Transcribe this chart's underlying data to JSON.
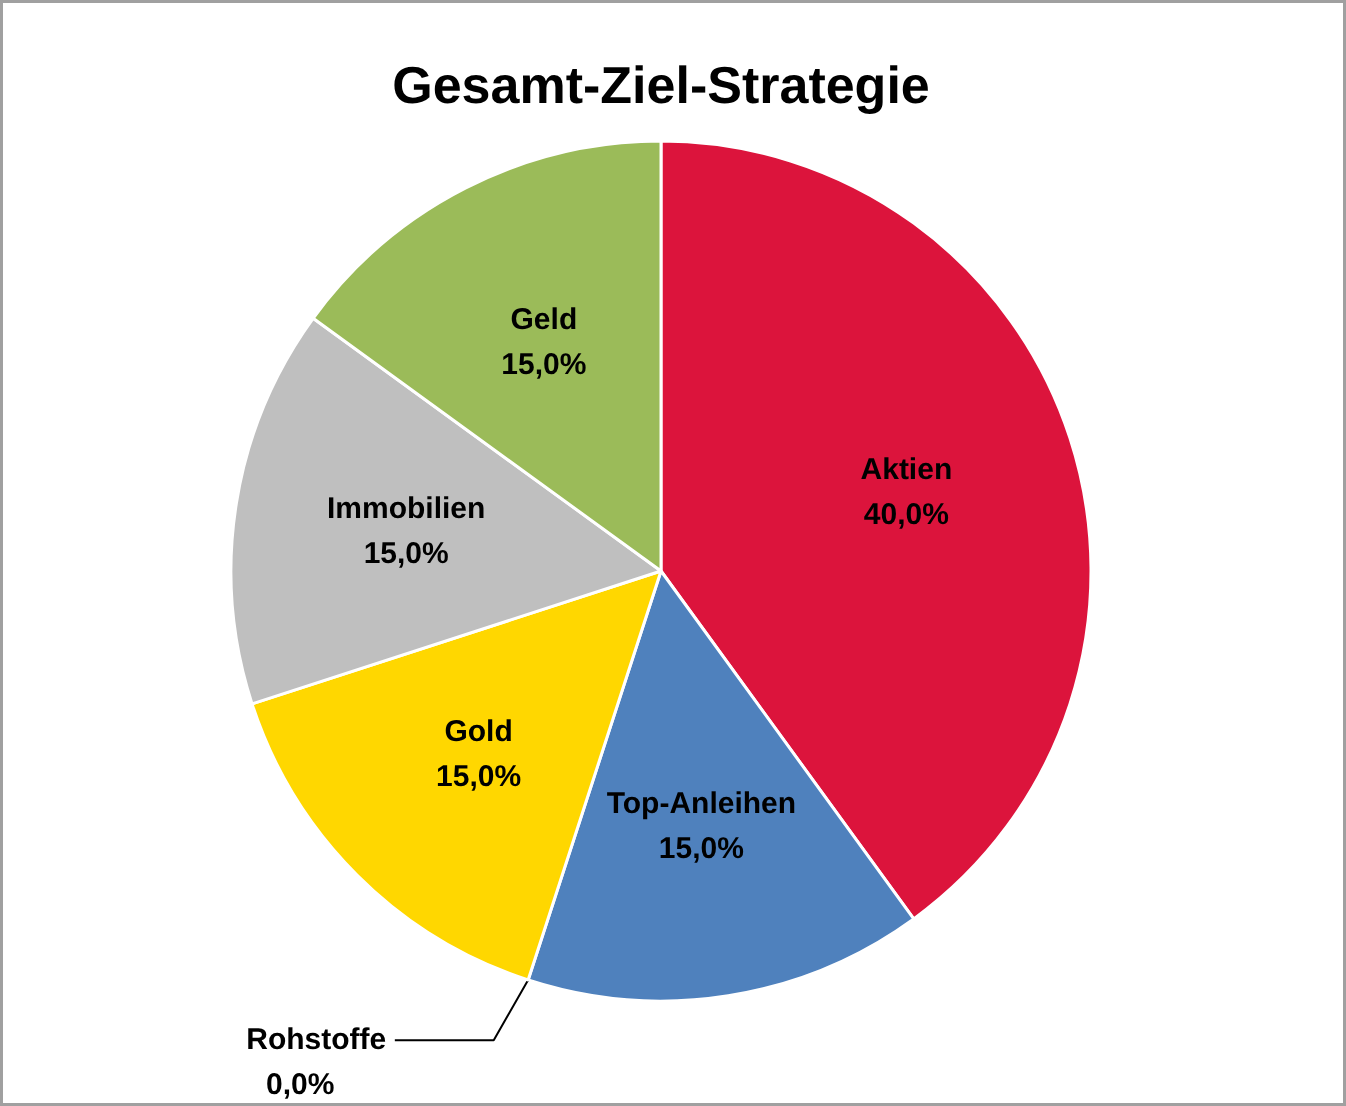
{
  "chart_data": {
    "type": "pie",
    "title": "Gesamt-Ziel-Strategie",
    "categories": [
      "Aktien",
      "Top-Anleihen",
      "Rohstoffe",
      "Gold",
      "Immobilien",
      "Geld"
    ],
    "values": [
      40,
      15,
      0,
      15,
      15,
      15
    ],
    "value_labels": [
      "40,0%",
      "15,0%",
      "0,0%",
      "15,0%",
      "15,0%",
      "15,0%"
    ],
    "colors": [
      "#dc143c",
      "#4f81bd",
      "#f79646",
      "#ffd700",
      "#bfbfbf",
      "#9bbb59"
    ],
    "legend": false
  }
}
